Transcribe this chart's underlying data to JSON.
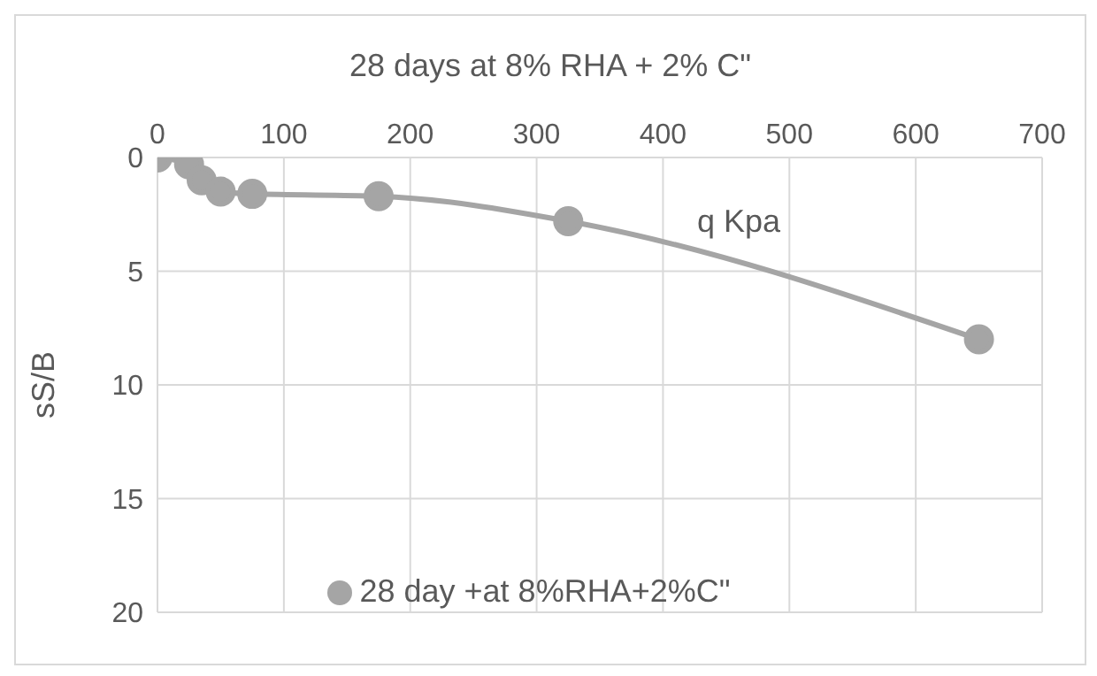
{
  "chart_data": {
    "type": "line",
    "title": "28 days at 8% RHA + 2% C\"",
    "xlabel": "q Kpa",
    "ylabel": "sS/B",
    "x": [
      0,
      25,
      35,
      50,
      75,
      175,
      325,
      650
    ],
    "series": [
      {
        "name": "28 day +at 8%RHA+2%C\"",
        "color": "#a5a5a5",
        "values": [
          0,
          0.3,
          1,
          1.5,
          1.6,
          1.7,
          2.8,
          8
        ]
      }
    ],
    "xlim": [
      0,
      700
    ],
    "xticks": [
      0,
      100,
      200,
      300,
      400,
      500,
      600,
      700
    ],
    "ylim": [
      20,
      0
    ],
    "yticks": [
      0,
      5,
      10,
      15,
      20
    ],
    "grid": true,
    "legend": "bottom",
    "marker": "circle",
    "line_style": "solid"
  }
}
